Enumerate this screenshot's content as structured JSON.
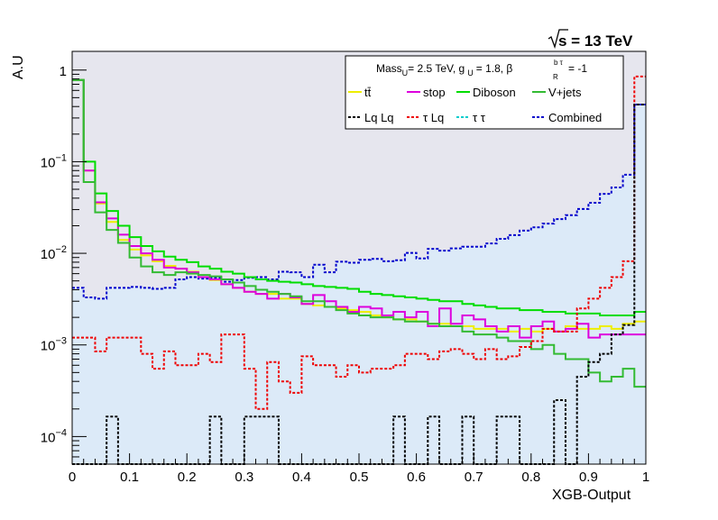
{
  "chart_data": {
    "type": "histogram",
    "energy_label": "s = 13 TeV",
    "xlabel": "XGB-Output",
    "ylabel": "A.U",
    "xlim": [
      0,
      1
    ],
    "ylim": [
      5e-05,
      1.6
    ],
    "y_scale": "log",
    "x_ticks": [
      "0",
      "0.1",
      "0.2",
      "0.3",
      "0.4",
      "0.5",
      "0.6",
      "0.7",
      "0.8",
      "0.9",
      "1"
    ],
    "y_ticks": [
      {
        "value": 1,
        "label": "1"
      },
      {
        "value": 0.1,
        "base": "10",
        "exp": "−1"
      },
      {
        "value": 0.01,
        "base": "10",
        "exp": "−2"
      },
      {
        "value": 0.001,
        "base": "10",
        "exp": "−3"
      },
      {
        "value": 0.0001,
        "base": "10",
        "exp": "−4"
      }
    ],
    "legend": {
      "placement": "top-right",
      "header": {
        "mass": "Mass",
        "mass_sub": "U",
        "mass_val": "= 2.5 TeV, g",
        "g_sub": "U",
        "g_val": "= 1.8, β",
        "beta_sub": "R",
        "beta_sup": "b τ",
        "beta_val": "= -1"
      },
      "entries": [
        {
          "name": "tt̄",
          "color": "#eeee00",
          "style": "solid"
        },
        {
          "name": "stop",
          "color": "#dd00dd",
          "style": "solid"
        },
        {
          "name": "Diboson",
          "color": "#00dd00",
          "style": "solid"
        },
        {
          "name": "V+jets",
          "color": "#33bb33",
          "style": "solid"
        },
        {
          "name": "Lq Lq",
          "color": "#000000",
          "style": "dotted"
        },
        {
          "name": "τ Lq",
          "color": "#ee0000",
          "style": "dotted"
        },
        {
          "name": "τ τ",
          "color": "#00cccc",
          "style": "dotted"
        },
        {
          "name": "Combined",
          "color": "#0000cc",
          "style": "dotted"
        }
      ]
    },
    "n_bins": 50,
    "series": [
      {
        "name": "Combined",
        "color": "#0000cc",
        "fill": "#dceaf8",
        "style": "dotted",
        "values": [
          0.0042,
          0.0033,
          0.0032,
          0.0042,
          0.0042,
          0.0043,
          0.0042,
          0.0041,
          0.0042,
          0.0052,
          0.0055,
          0.0053,
          0.0054,
          0.0049,
          0.0051,
          0.0054,
          0.0055,
          0.0052,
          0.0063,
          0.0062,
          0.0055,
          0.0075,
          0.0062,
          0.0081,
          0.0079,
          0.0085,
          0.0087,
          0.0082,
          0.0084,
          0.0101,
          0.0088,
          0.0112,
          0.0107,
          0.0113,
          0.0118,
          0.0118,
          0.0128,
          0.0144,
          0.0158,
          0.0177,
          0.0192,
          0.0211,
          0.0236,
          0.0261,
          0.0305,
          0.0356,
          0.0445,
          0.0524,
          0.072,
          0.42
        ]
      },
      {
        "name": "tt̄",
        "color": "#eeee00",
        "style": "solid",
        "values": [
          0.78,
          0.08,
          0.035,
          0.022,
          0.014,
          0.011,
          0.0095,
          0.0082,
          0.0073,
          0.0068,
          0.0063,
          0.0055,
          0.0051,
          0.0046,
          0.0042,
          0.0038,
          0.0036,
          0.0036,
          0.0032,
          0.0032,
          0.0028,
          0.0027,
          0.0026,
          0.0025,
          0.0024,
          0.0023,
          0.0021,
          0.002,
          0.0019,
          0.0019,
          0.0018,
          0.0017,
          0.0017,
          0.0016,
          0.0016,
          0.0015,
          0.0015,
          0.0015,
          0.0014,
          0.0015,
          0.0014,
          0.0015,
          0.0014,
          0.0016,
          0.0015,
          0.0015,
          0.0016,
          0.0015,
          0.0017,
          0.0018
        ]
      },
      {
        "name": "stop",
        "color": "#dd00dd",
        "style": "solid",
        "values": [
          0.78,
          0.08,
          0.036,
          0.024,
          0.016,
          0.012,
          0.01,
          0.0085,
          0.007,
          0.0068,
          0.0062,
          0.0055,
          0.0052,
          0.0046,
          0.0042,
          0.0038,
          0.0036,
          0.0032,
          0.0036,
          0.0033,
          0.0028,
          0.0035,
          0.003,
          0.0026,
          0.0023,
          0.0026,
          0.0025,
          0.0021,
          0.0023,
          0.002,
          0.0023,
          0.0016,
          0.0025,
          0.0017,
          0.0021,
          0.0019,
          0.0016,
          0.0014,
          0.0016,
          0.0012,
          0.0016,
          0.0018,
          0.0014,
          0.0015,
          0.0017,
          0.0012,
          0.0013,
          0.0013,
          0.0013,
          0.0013
        ]
      },
      {
        "name": "Diboson",
        "color": "#00dd00",
        "style": "solid",
        "values": [
          0.78,
          0.1,
          0.045,
          0.029,
          0.02,
          0.015,
          0.012,
          0.0105,
          0.0092,
          0.0085,
          0.008,
          0.0072,
          0.0068,
          0.0063,
          0.006,
          0.0055,
          0.0052,
          0.005,
          0.0049,
          0.0048,
          0.0046,
          0.0044,
          0.0043,
          0.0042,
          0.0041,
          0.0038,
          0.0036,
          0.0035,
          0.0034,
          0.0033,
          0.0032,
          0.0031,
          0.003,
          0.003,
          0.0028,
          0.0027,
          0.0026,
          0.0025,
          0.0025,
          0.0024,
          0.0024,
          0.0023,
          0.0023,
          0.0022,
          0.0022,
          0.0022,
          0.0021,
          0.0021,
          0.0021,
          0.0023
        ]
      },
      {
        "name": "V+jets",
        "color": "#33bb33",
        "style": "solid",
        "values": [
          0.78,
          0.06,
          0.028,
          0.018,
          0.013,
          0.009,
          0.0072,
          0.0062,
          0.0058,
          0.0062,
          0.006,
          0.0058,
          0.0056,
          0.0052,
          0.0048,
          0.0044,
          0.004,
          0.0038,
          0.0036,
          0.0034,
          0.003,
          0.003,
          0.0026,
          0.0024,
          0.0022,
          0.0021,
          0.002,
          0.002,
          0.0019,
          0.0018,
          0.0018,
          0.0017,
          0.0016,
          0.0016,
          0.0014,
          0.0013,
          0.0013,
          0.0012,
          0.0011,
          0.0011,
          0.0009,
          0.001,
          0.0008,
          0.0007,
          0.0007,
          0.0005,
          0.0004,
          0.00045,
          0.00055,
          0.00035
        ]
      },
      {
        "name": "τ Lq",
        "color": "#ee0000",
        "style": "dotted",
        "values": [
          0.0012,
          0.0012,
          0.00085,
          0.0012,
          0.0012,
          0.0012,
          0.0008,
          0.00055,
          0.00085,
          0.0006,
          0.0006,
          0.0008,
          0.00065,
          0.0013,
          0.0013,
          0.00055,
          0.0002,
          0.00065,
          0.0004,
          0.0003,
          0.00075,
          0.0006,
          0.0006,
          0.00045,
          0.0006,
          0.0005,
          0.00055,
          0.00055,
          0.0006,
          0.0008,
          0.0008,
          0.0007,
          0.00085,
          0.0009,
          0.0008,
          0.0007,
          0.0009,
          0.0007,
          0.00075,
          0.00095,
          0.0011,
          0.0015,
          0.0014,
          0.0014,
          0.0025,
          0.0032,
          0.0042,
          0.0055,
          0.0082,
          0.85
        ]
      },
      {
        "name": "Lq Lq",
        "color": "#000000",
        "style": "dotted",
        "values": [
          0,
          0,
          0,
          0.000165,
          0,
          0,
          0,
          0,
          0,
          0,
          0,
          0,
          0.000165,
          0,
          0,
          0.000165,
          0.000165,
          0.000165,
          0,
          0,
          0,
          0,
          0,
          0,
          0,
          0,
          0,
          0,
          0.000165,
          0,
          0,
          0.000165,
          0,
          0,
          0.000165,
          0,
          0,
          0.000165,
          0.000165,
          0,
          0,
          0,
          0.00025,
          0,
          0.00045,
          0.00065,
          0.0008,
          0.0013,
          0.00165,
          0.42
        ]
      }
    ]
  }
}
